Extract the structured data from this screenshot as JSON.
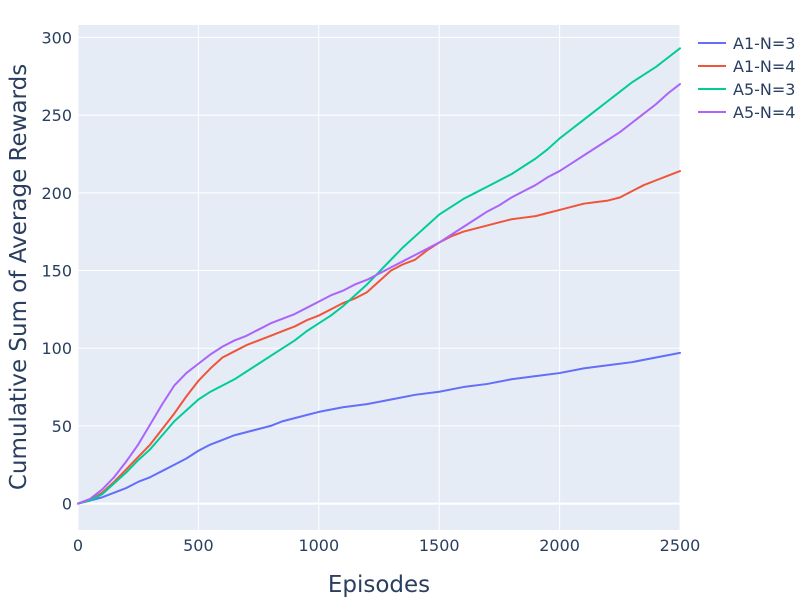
{
  "chart_data": {
    "type": "line",
    "title": "",
    "xlabel": "Episodes",
    "ylabel": "Cumulative Sum of Average Rewards",
    "xlim": [
      0,
      2500
    ],
    "ylim": [
      -17,
      308
    ],
    "xticks": [
      0,
      500,
      1000,
      1500,
      2000,
      2500
    ],
    "yticks": [
      0,
      50,
      100,
      150,
      200,
      250,
      300
    ],
    "grid": true,
    "legend_position": "top-right-outside",
    "colors": {
      "plot_background": "#e5ecf6",
      "grid": "#ffffff",
      "text": "#2a3f5f"
    },
    "series": [
      {
        "name": "A1-N=3",
        "color": "#636efa",
        "x": [
          0,
          50,
          100,
          150,
          200,
          250,
          300,
          350,
          400,
          450,
          500,
          550,
          600,
          650,
          700,
          750,
          800,
          850,
          900,
          950,
          1000,
          1100,
          1200,
          1300,
          1400,
          1500,
          1600,
          1700,
          1800,
          1900,
          2000,
          2100,
          2200,
          2300,
          2400,
          2500
        ],
        "y": [
          0,
          2,
          4,
          7,
          10,
          14,
          17,
          21,
          25,
          29,
          34,
          38,
          41,
          44,
          46,
          48,
          50,
          53,
          55,
          57,
          59,
          62,
          64,
          67,
          70,
          72,
          75,
          77,
          80,
          82,
          84,
          87,
          89,
          91,
          94,
          97
        ]
      },
      {
        "name": "A1-N=4",
        "color": "#ef553b",
        "x": [
          0,
          50,
          100,
          150,
          200,
          250,
          300,
          350,
          400,
          450,
          500,
          550,
          600,
          650,
          700,
          750,
          800,
          850,
          900,
          950,
          1000,
          1050,
          1100,
          1150,
          1200,
          1250,
          1300,
          1350,
          1400,
          1450,
          1500,
          1550,
          1600,
          1650,
          1700,
          1750,
          1800,
          1850,
          1900,
          1950,
          2000,
          2050,
          2100,
          2150,
          2200,
          2250,
          2300,
          2350,
          2400,
          2450,
          2500
        ],
        "y": [
          0,
          2,
          7,
          14,
          22,
          30,
          38,
          48,
          58,
          69,
          79,
          87,
          94,
          98,
          102,
          105,
          108,
          111,
          114,
          118,
          121,
          125,
          129,
          132,
          136,
          143,
          150,
          154,
          157,
          163,
          168,
          172,
          175,
          177,
          179,
          181,
          183,
          184,
          185,
          187,
          189,
          191,
          193,
          194,
          195,
          197,
          201,
          205,
          208,
          211,
          214
        ]
      },
      {
        "name": "A5-N=3",
        "color": "#00cc96",
        "x": [
          0,
          50,
          100,
          150,
          200,
          250,
          300,
          350,
          400,
          450,
          500,
          550,
          600,
          650,
          700,
          750,
          800,
          850,
          900,
          950,
          1000,
          1050,
          1100,
          1150,
          1200,
          1250,
          1300,
          1350,
          1400,
          1450,
          1500,
          1550,
          1600,
          1650,
          1700,
          1750,
          1800,
          1850,
          1900,
          1950,
          2000,
          2050,
          2100,
          2150,
          2200,
          2250,
          2300,
          2350,
          2400,
          2450,
          2500
        ],
        "y": [
          0,
          2,
          6,
          13,
          20,
          28,
          35,
          44,
          53,
          60,
          67,
          72,
          76,
          80,
          85,
          90,
          95,
          100,
          105,
          111,
          116,
          121,
          127,
          134,
          141,
          149,
          157,
          165,
          172,
          179,
          186,
          191,
          196,
          200,
          204,
          208,
          212,
          217,
          222,
          228,
          235,
          241,
          247,
          253,
          259,
          265,
          271,
          276,
          281,
          287,
          293
        ]
      },
      {
        "name": "A5-N=4",
        "color": "#ab63fa",
        "x": [
          0,
          50,
          100,
          150,
          200,
          250,
          300,
          350,
          400,
          450,
          500,
          550,
          600,
          650,
          700,
          750,
          800,
          850,
          900,
          950,
          1000,
          1050,
          1100,
          1150,
          1200,
          1250,
          1300,
          1350,
          1400,
          1450,
          1500,
          1550,
          1600,
          1650,
          1700,
          1750,
          1800,
          1850,
          1900,
          1950,
          2000,
          2050,
          2100,
          2150,
          2200,
          2250,
          2300,
          2350,
          2400,
          2450,
          2500
        ],
        "y": [
          0,
          3,
          9,
          17,
          27,
          38,
          51,
          64,
          76,
          84,
          90,
          96,
          101,
          105,
          108,
          112,
          116,
          119,
          122,
          126,
          130,
          134,
          137,
          141,
          144,
          148,
          152,
          156,
          160,
          164,
          168,
          173,
          178,
          183,
          188,
          192,
          197,
          201,
          205,
          210,
          214,
          219,
          224,
          229,
          234,
          239,
          245,
          251,
          257,
          264,
          270
        ]
      }
    ]
  }
}
